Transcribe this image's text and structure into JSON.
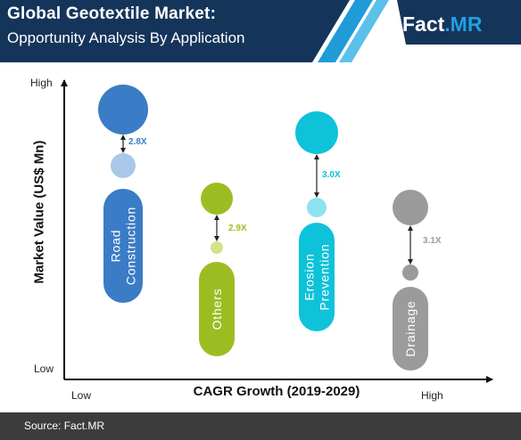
{
  "header": {
    "title": "Global Geotextile Market:",
    "subtitle": "Opportunity Analysis By Application",
    "logo_fact": "Fact",
    "logo_mr": ".MR"
  },
  "footer": {
    "source": "Source: Fact.MR"
  },
  "chart_data": {
    "type": "bubble-comparison",
    "xlabel": "CAGR Growth (2019-2029)",
    "ylabel": "Market Value (US$ Mn)",
    "x_ticks": [
      "Low",
      "High"
    ],
    "y_ticks": [
      "High",
      "Low"
    ],
    "categories": [
      {
        "name": "Road Construction",
        "label_lines": [
          "Road",
          "Construction"
        ],
        "multiplier": "2.8X",
        "color": "#3a7cc6",
        "small_color": "#a9c7e8"
      },
      {
        "name": "Others",
        "label_lines": [
          "Others"
        ],
        "multiplier": "2.9X",
        "color": "#9cbd22",
        "small_color": "#d2e38a"
      },
      {
        "name": "Erosion Prevention",
        "label_lines": [
          "Erosion",
          "Prevention"
        ],
        "multiplier": "3.0X",
        "color": "#0ec2da",
        "small_color": "#8ee3f0"
      },
      {
        "name": "Drainage",
        "label_lines": [
          "Drainage"
        ],
        "multiplier": "3.1X",
        "color": "#9b9b9b",
        "small_color": "#9b9b9b"
      }
    ]
  },
  "colors": {
    "header_dark": "#15345a",
    "header_accent": "#1f9bd8",
    "footer": "#3c3c3c"
  }
}
